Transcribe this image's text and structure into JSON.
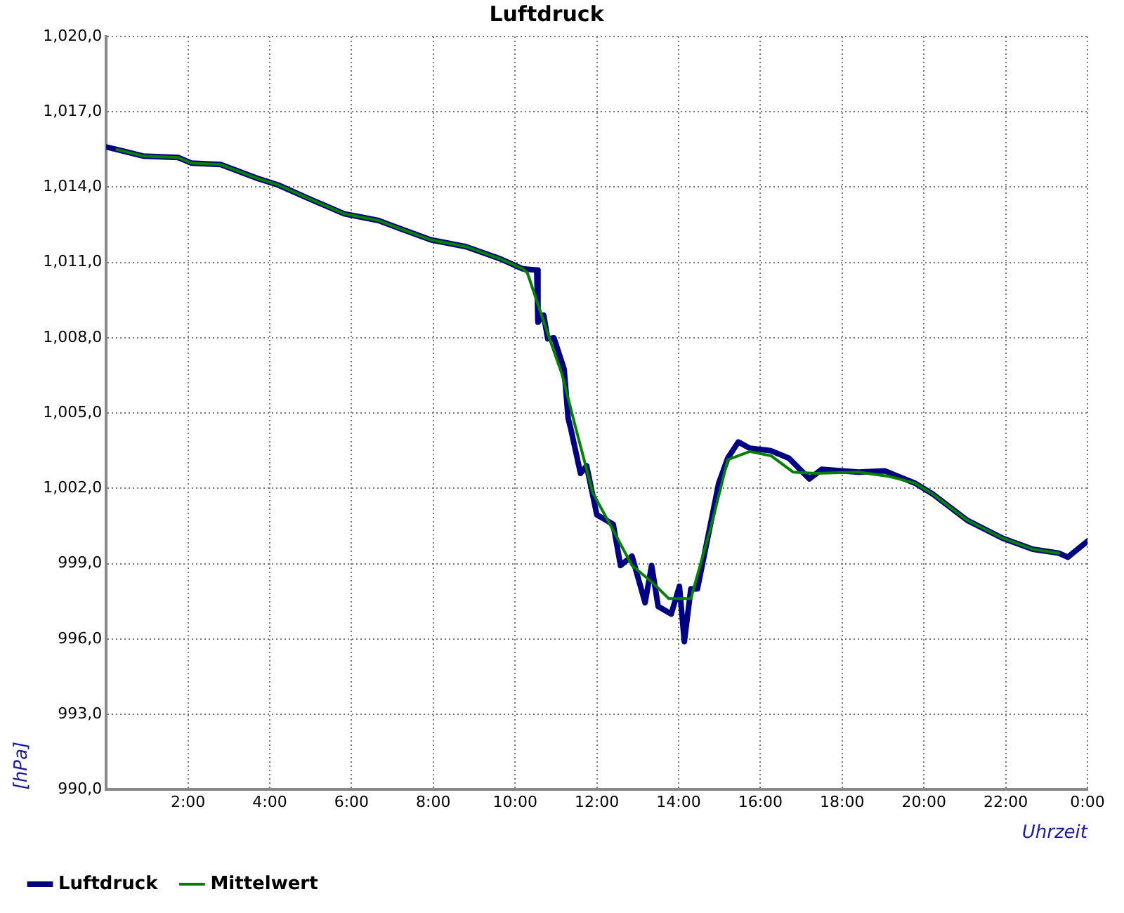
{
  "chart_data": {
    "type": "line",
    "title": "Luftdruck",
    "xlabel": "Uhrzeit",
    "ylabel": "[hPa]",
    "xlim": [
      0,
      24
    ],
    "xticks": [
      {
        "value": 0,
        "label": null
      },
      {
        "value": 2,
        "label": "2:00"
      },
      {
        "value": 4,
        "label": "4:00"
      },
      {
        "value": 6,
        "label": "6:00"
      },
      {
        "value": 8,
        "label": "8:00"
      },
      {
        "value": 10,
        "label": "10:00"
      },
      {
        "value": 12,
        "label": "12:00"
      },
      {
        "value": 14,
        "label": "14:00"
      },
      {
        "value": 16,
        "label": "16:00"
      },
      {
        "value": 18,
        "label": "18:00"
      },
      {
        "value": 20,
        "label": "20:00"
      },
      {
        "value": 22,
        "label": "22:00"
      },
      {
        "value": 24,
        "label": "0:00"
      }
    ],
    "ylim": [
      990,
      1020
    ],
    "yticks": [
      {
        "value": 990,
        "label": "990,0"
      },
      {
        "value": 993,
        "label": "993,0"
      },
      {
        "value": 996,
        "label": "996,0"
      },
      {
        "value": 999,
        "label": "999,0"
      },
      {
        "value": 1002,
        "label": "1,002,0"
      },
      {
        "value": 1005,
        "label": "1,005,0"
      },
      {
        "value": 1008,
        "label": "1,008,0"
      },
      {
        "value": 1011,
        "label": "1,011,0"
      },
      {
        "value": 1014,
        "label": "1,014,0"
      },
      {
        "value": 1017,
        "label": "1,017,0"
      },
      {
        "value": 1020,
        "label": "1,020,0"
      }
    ],
    "grid": true,
    "legend": "bottom left",
    "marker": "none",
    "line_style": "solid",
    "series": [
      {
        "name": "Luftdruck",
        "color": "#000080",
        "x": [
          0,
          0.26,
          0.9,
          1.76,
          2.08,
          2.8,
          3.68,
          4.2,
          4.96,
          5.82,
          6.66,
          7.2,
          7.94,
          8.8,
          9.66,
          10.18,
          10.53,
          10.56,
          10.7,
          10.8,
          10.95,
          11.2,
          11.3,
          11.36,
          11.6,
          11.75,
          12.0,
          12.4,
          12.58,
          12.86,
          13.18,
          13.34,
          13.5,
          13.82,
          14.02,
          14.14,
          14.3,
          14.46,
          14.78,
          14.98,
          15.2,
          15.46,
          15.74,
          16.26,
          16.7,
          17.2,
          17.5,
          18.4,
          19.04,
          19.78,
          20.22,
          21.06,
          21.92,
          22.66,
          23.3,
          23.52,
          24
        ],
        "values": [
          1015.6,
          1015.5,
          1015.24,
          1015.18,
          1014.96,
          1014.9,
          1014.36,
          1014.09,
          1013.54,
          1012.94,
          1012.67,
          1012.34,
          1011.9,
          1011.63,
          1011.13,
          1010.75,
          1010.7,
          1008.62,
          1008.9,
          1007.96,
          1008.0,
          1006.75,
          1004.78,
          1004.4,
          1002.6,
          1002.9,
          1000.95,
          1000.57,
          998.93,
          999.3,
          997.45,
          998.93,
          997.3,
          997.0,
          998.1,
          995.9,
          998.0,
          998.0,
          1000.57,
          1002.2,
          1003.2,
          1003.85,
          1003.6,
          1003.5,
          1003.2,
          1002.38,
          1002.76,
          1002.65,
          1002.7,
          1002.21,
          1001.77,
          1000.73,
          1000.02,
          999.58,
          999.42,
          999.26,
          999.9
        ]
      },
      {
        "name": "Mittelwert",
        "color": "#008000",
        "x": [
          0.26,
          0.9,
          1.76,
          2.08,
          2.8,
          3.68,
          4.2,
          4.96,
          5.82,
          6.66,
          7.2,
          7.94,
          8.8,
          9.66,
          10.18,
          10.3,
          10.56,
          10.82,
          11.14,
          11.46,
          11.9,
          12.32,
          12.86,
          13.38,
          13.76,
          14.3,
          14.78,
          15.2,
          15.74,
          16.26,
          16.8,
          17.34,
          18.4,
          19.14,
          19.78,
          20.22,
          21.06,
          21.92,
          22.66,
          23.3
        ],
        "values": [
          1015.5,
          1015.24,
          1015.18,
          1014.96,
          1014.9,
          1014.36,
          1014.09,
          1013.54,
          1012.94,
          1012.67,
          1012.34,
          1011.9,
          1011.63,
          1011.13,
          1010.75,
          1010.59,
          1009.33,
          1008.07,
          1006.59,
          1004.56,
          1001.83,
          1000.57,
          998.93,
          998.22,
          997.61,
          997.61,
          1000.4,
          1003.14,
          1003.47,
          1003.3,
          1002.65,
          1002.6,
          1002.65,
          1002.48,
          1002.21,
          1001.77,
          1000.73,
          1000.02,
          999.58,
          999.42
        ]
      }
    ]
  }
}
